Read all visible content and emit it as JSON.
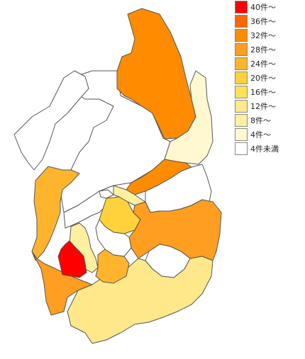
{
  "legend": {
    "items": [
      {
        "label": "40件～",
        "color": "#ff0000"
      },
      {
        "label": "36件～",
        "color": "#ff6600"
      },
      {
        "label": "32件～",
        "color": "#ff8c00"
      },
      {
        "label": "28件～",
        "color": "#ff9e20"
      },
      {
        "label": "24件～",
        "color": "#ffb42d"
      },
      {
        "label": "20件～",
        "color": "#ffd23c"
      },
      {
        "label": "16件～",
        "color": "#ffe05a"
      },
      {
        "label": "12件～",
        "color": "#ffe88a"
      },
      {
        "label": "8件～",
        "color": "#fff0a0"
      },
      {
        "label": "4件～",
        "color": "#fff8d0"
      },
      {
        "label": "4件未満",
        "color": "#ffffff"
      }
    ]
  },
  "regions": [
    {
      "id": "north-east-32",
      "color": "#ff8c00"
    },
    {
      "id": "north-west-small",
      "color": "#ffffff"
    },
    {
      "id": "east-shore-4",
      "color": "#fff8d0"
    },
    {
      "id": "lake-interior",
      "color": "#ffffff"
    },
    {
      "id": "east-strip-32",
      "color": "#ff8c00"
    },
    {
      "id": "east-white",
      "color": "#ffffff"
    },
    {
      "id": "west-white",
      "color": "#ffffff"
    },
    {
      "id": "west-24",
      "color": "#ffb42d"
    },
    {
      "id": "center-20",
      "color": "#ffd23c"
    },
    {
      "id": "east-28",
      "color": "#ff9e20"
    },
    {
      "id": "center-white",
      "color": "#ffffff"
    },
    {
      "id": "southwest-28",
      "color": "#ff9e20"
    },
    {
      "id": "south-12",
      "color": "#ffe88a"
    },
    {
      "id": "southwest-8",
      "color": "#fff0a0"
    },
    {
      "id": "center-24",
      "color": "#ffb42d"
    },
    {
      "id": "south-center-white",
      "color": "#ffffff"
    },
    {
      "id": "red-40",
      "color": "#ff0000"
    },
    {
      "id": "small-8-a",
      "color": "#fff0a0"
    },
    {
      "id": "small-white-a",
      "color": "#ffffff"
    }
  ]
}
